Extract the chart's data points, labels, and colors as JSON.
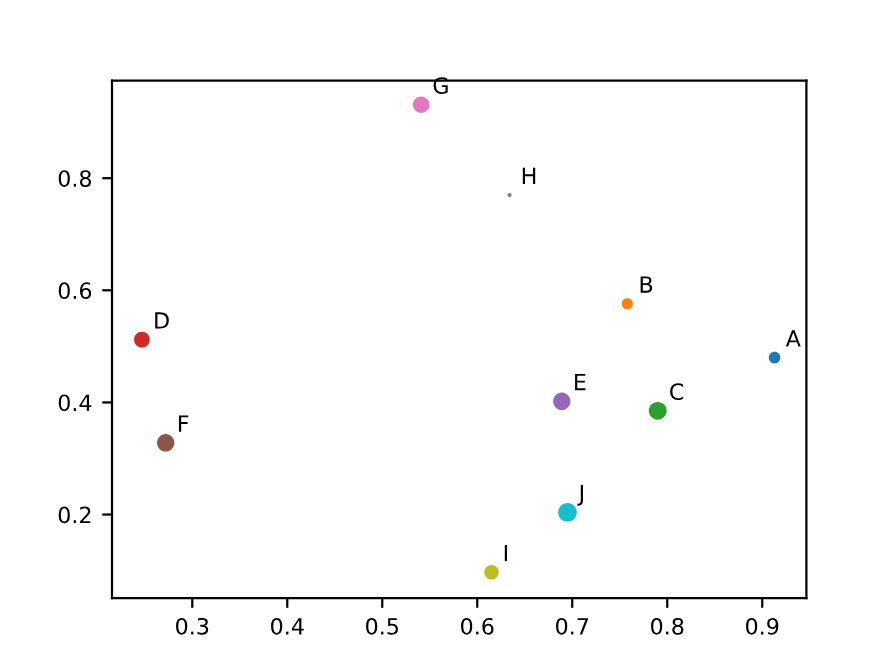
{
  "chart_data": {
    "type": "bubble",
    "x": [
      0.913,
      0.758,
      0.79,
      0.247,
      0.689,
      0.272,
      0.541,
      0.634,
      0.615,
      0.695
    ],
    "values": [
      0.48,
      0.576,
      0.385,
      0.512,
      0.402,
      0.328,
      0.931,
      0.77,
      0.097,
      0.204
    ],
    "sizes": [
      0.39,
      0.36,
      0.91,
      0.71,
      0.87,
      0.87,
      0.79,
      0.05,
      0.6,
      1
    ],
    "colors": [
      "#1f77b4",
      "#ff7f0e",
      "#2ca02c",
      "#d62728",
      "#9467bd",
      "#8c564b",
      "#e377c2",
      "#7f7f7f",
      "#bcbd22",
      "#17becf"
    ],
    "annotations": [
      {
        "text": "A",
        "x": 0.913,
        "y": 0.48
      },
      {
        "text": "B",
        "x": 0.758,
        "y": 0.576
      },
      {
        "text": "C",
        "x": 0.79,
        "y": 0.385
      },
      {
        "text": "D",
        "x": 0.247,
        "y": 0.512
      },
      {
        "text": "E",
        "x": 0.689,
        "y": 0.402
      },
      {
        "text": "F",
        "x": 0.272,
        "y": 0.328
      },
      {
        "text": "G",
        "x": 0.541,
        "y": 0.931
      },
      {
        "text": "H",
        "x": 0.634,
        "y": 0.77
      },
      {
        "text": "I",
        "x": 0.615,
        "y": 0.097
      },
      {
        "text": "J",
        "x": 0.695,
        "y": 0.204
      }
    ],
    "xlim": [
      0.2155,
      0.9465
    ],
    "ylim": [
      0.051,
      0.974
    ],
    "xticks": [
      0.3,
      0.4,
      0.5,
      0.6,
      0.7,
      0.8,
      0.9
    ],
    "yticks": [
      0.2,
      0.4,
      0.6,
      0.8
    ],
    "grid": false,
    "legend": false
  }
}
